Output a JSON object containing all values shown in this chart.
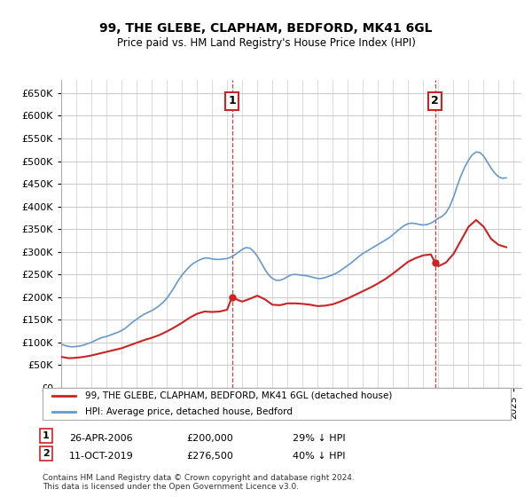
{
  "title": "99, THE GLEBE, CLAPHAM, BEDFORD, MK41 6GL",
  "subtitle": "Price paid vs. HM Land Registry's House Price Index (HPI)",
  "ylabel_ticks": [
    0,
    50000,
    100000,
    150000,
    200000,
    250000,
    300000,
    350000,
    400000,
    450000,
    500000,
    550000,
    600000,
    650000
  ],
  "ylim": [
    0,
    680000
  ],
  "xlim_start": 1995.0,
  "xlim_end": 2025.5,
  "sale1_x": 2006.32,
  "sale1_y": 200000,
  "sale1_label": "1",
  "sale2_x": 2019.78,
  "sale2_y": 276500,
  "sale2_label": "2",
  "hpi_color": "#6699cc",
  "house_color": "#cc2222",
  "legend_house": "99, THE GLEBE, CLAPHAM, BEDFORD, MK41 6GL (detached house)",
  "legend_hpi": "HPI: Average price, detached house, Bedford",
  "annotation1": "26-APR-2006     £200,000     29% ↓ HPI",
  "annotation2": "11-OCT-2019     £276,500     40% ↓ HPI",
  "footer": "Contains HM Land Registry data © Crown copyright and database right 2024.\nThis data is licensed under the Open Government Licence v3.0.",
  "bg_color": "#ffffff",
  "grid_color": "#cccccc",
  "hpi_years": [
    1995.0,
    1995.25,
    1995.5,
    1995.75,
    1996.0,
    1996.25,
    1996.5,
    1996.75,
    1997.0,
    1997.25,
    1997.5,
    1997.75,
    1998.0,
    1998.25,
    1998.5,
    1998.75,
    1999.0,
    1999.25,
    1999.5,
    1999.75,
    2000.0,
    2000.25,
    2000.5,
    2000.75,
    2001.0,
    2001.25,
    2001.5,
    2001.75,
    2002.0,
    2002.25,
    2002.5,
    2002.75,
    2003.0,
    2003.25,
    2003.5,
    2003.75,
    2004.0,
    2004.25,
    2004.5,
    2004.75,
    2005.0,
    2005.25,
    2005.5,
    2005.75,
    2006.0,
    2006.25,
    2006.5,
    2006.75,
    2007.0,
    2007.25,
    2007.5,
    2007.75,
    2008.0,
    2008.25,
    2008.5,
    2008.75,
    2009.0,
    2009.25,
    2009.5,
    2009.75,
    2010.0,
    2010.25,
    2010.5,
    2010.75,
    2011.0,
    2011.25,
    2011.5,
    2011.75,
    2012.0,
    2012.25,
    2012.5,
    2012.75,
    2013.0,
    2013.25,
    2013.5,
    2013.75,
    2014.0,
    2014.25,
    2014.5,
    2014.75,
    2015.0,
    2015.25,
    2015.5,
    2015.75,
    2016.0,
    2016.25,
    2016.5,
    2016.75,
    2017.0,
    2017.25,
    2017.5,
    2017.75,
    2018.0,
    2018.25,
    2018.5,
    2018.75,
    2019.0,
    2019.25,
    2019.5,
    2019.75,
    2020.0,
    2020.25,
    2020.5,
    2020.75,
    2021.0,
    2021.25,
    2021.5,
    2021.75,
    2022.0,
    2022.25,
    2022.5,
    2022.75,
    2023.0,
    2023.25,
    2023.5,
    2023.75,
    2024.0,
    2024.25,
    2024.5
  ],
  "hpi_values": [
    96000,
    93000,
    91000,
    90000,
    91000,
    92000,
    94000,
    97000,
    100000,
    104000,
    108000,
    111000,
    113000,
    116000,
    119000,
    122000,
    126000,
    131000,
    138000,
    145000,
    151000,
    157000,
    162000,
    166000,
    170000,
    175000,
    181000,
    188000,
    197000,
    209000,
    222000,
    236000,
    248000,
    258000,
    267000,
    274000,
    279000,
    283000,
    286000,
    286000,
    284000,
    283000,
    283000,
    284000,
    285000,
    288000,
    293000,
    299000,
    305000,
    309000,
    308000,
    301000,
    290000,
    276000,
    261000,
    249000,
    241000,
    237000,
    237000,
    240000,
    245000,
    249000,
    250000,
    249000,
    248000,
    247000,
    245000,
    243000,
    241000,
    241000,
    243000,
    246000,
    249000,
    253000,
    258000,
    264000,
    270000,
    276000,
    283000,
    290000,
    296000,
    301000,
    306000,
    311000,
    316000,
    321000,
    326000,
    331000,
    338000,
    345000,
    352000,
    358000,
    362000,
    363000,
    362000,
    360000,
    359000,
    360000,
    363000,
    368000,
    374000,
    378000,
    386000,
    400000,
    420000,
    445000,
    468000,
    487000,
    502000,
    514000,
    520000,
    519000,
    511000,
    498000,
    484000,
    473000,
    465000,
    462000,
    463000
  ],
  "house_years": [
    1995.0,
    1995.5,
    1996.0,
    1996.5,
    1997.0,
    1997.5,
    1998.0,
    1998.5,
    1999.0,
    1999.5,
    2000.0,
    2000.5,
    2001.0,
    2001.5,
    2002.0,
    2002.5,
    2003.0,
    2003.5,
    2004.0,
    2004.5,
    2005.0,
    2005.5,
    2006.0,
    2006.32,
    2006.75,
    2007.0,
    2007.5,
    2008.0,
    2008.5,
    2009.0,
    2009.5,
    2010.0,
    2010.5,
    2011.0,
    2011.5,
    2012.0,
    2012.5,
    2013.0,
    2013.5,
    2014.0,
    2014.5,
    2015.0,
    2015.5,
    2016.0,
    2016.5,
    2017.0,
    2017.5,
    2018.0,
    2018.5,
    2019.0,
    2019.5,
    2019.78,
    2020.0,
    2020.5,
    2021.0,
    2021.5,
    2022.0,
    2022.5,
    2023.0,
    2023.5,
    2024.0,
    2024.5
  ],
  "house_values": [
    68000,
    65000,
    66000,
    68000,
    71000,
    75000,
    79000,
    83000,
    87000,
    93000,
    99000,
    105000,
    110000,
    116000,
    124000,
    133000,
    143000,
    154000,
    163000,
    168000,
    167000,
    168000,
    172000,
    200000,
    193000,
    190000,
    196000,
    203000,
    195000,
    183000,
    182000,
    186000,
    186000,
    185000,
    183000,
    180000,
    181000,
    184000,
    190000,
    197000,
    205000,
    213000,
    221000,
    230000,
    240000,
    252000,
    265000,
    278000,
    286000,
    292000,
    294000,
    276500,
    268000,
    276000,
    295000,
    325000,
    355000,
    370000,
    355000,
    328000,
    315000,
    310000
  ]
}
